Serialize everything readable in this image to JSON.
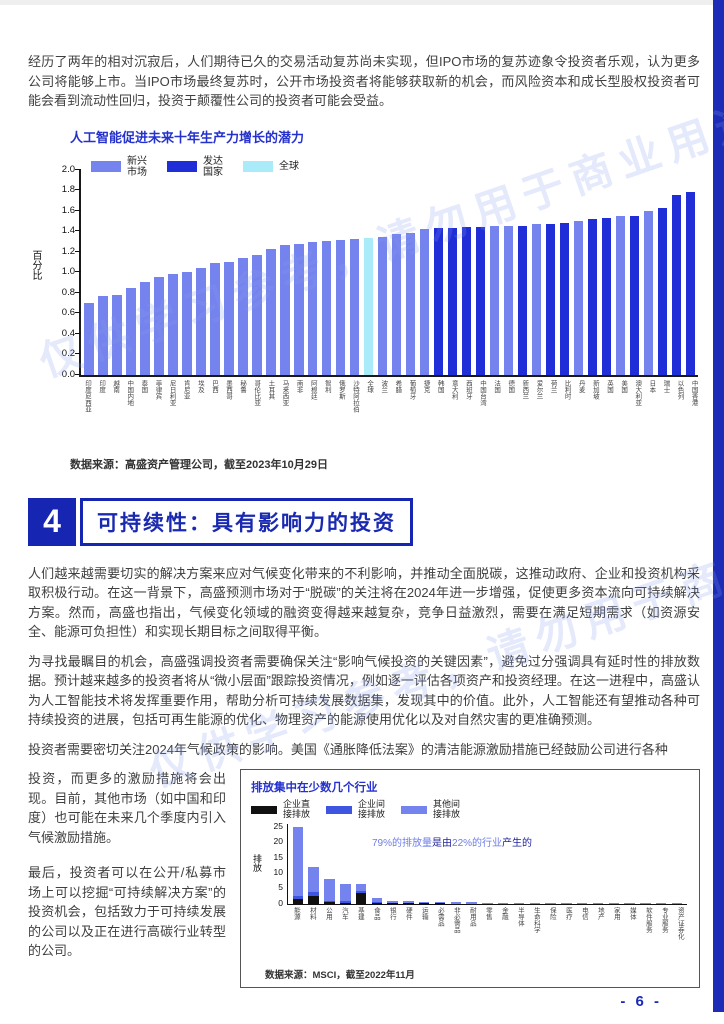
{
  "page": {
    "number": "- 6 -",
    "watermark": "仅供学习参考，请勿用于商业用途"
  },
  "paragraphs": {
    "intro": "经历了两年的相对沉寂后，人们期待已久的交易活动复苏尚未实现，但IPO市场的复苏迹象令投资者乐观，认为更多公司将能够上市。当IPO市场最终复苏时，公开市场投资者将能够获取新的机会，而风险资本和成长型股权投资者可能会看到流动性回归，投资于颠覆性公司的投资者可能会受益。",
    "sustain1": "人们越来越需要切实的解决方案来应对气候变化带来的不利影响，并推动全面脱碳，这推动政府、企业和投资机构采取积极行动。在这一背景下，高盛预测市场对于“脱碳”的关注将在2024年进一步增强，促使更多资本流向可持续解决方案。然而，高盛也指出，气候变化领域的融资变得越来越复杂，竞争日益激烈，需要在满足短期需求（如资源安全、能源可负担性）和实现长期目标之间取得平衡。",
    "sustain2": "为寻找最瞩目的机会，高盛强调投资者需要确保关注“影响气候投资的关键因素”，避免过分强调具有延时性的排放数据。预计越来越多的投资者将从“微小层面”跟踪投资情况，例如逐一评估各项资产和投资经理。在这一进程中，高盛认为人工智能技术将发挥重要作用，帮助分析可持续发展数据集，发现其中的价值。此外，人工智能还有望推动各种可持续投资的进展，包括可再生能源的优化、物理资产的能源使用优化以及对自然灾害的更准确预测。",
    "sustain3": "投资者需要密切关注2024年气候政策的影响。美国《通胀降低法案》的清洁能源激励措施已经鼓励公司进行各种",
    "col1": "投资，而更多的激励措施将会出现。目前，其他市场（如中国和印度）也可能在未来几个季度内引入气候激励措施。",
    "col2": "最后，投资者可以在公开/私募市场上可以挖掘“可持续解决方案”的投资机会，包括致力于可持续发展的公司以及正在进行高碳行业转型的公司。"
  },
  "section_header": {
    "number": "4",
    "title": "可持续性：具有影响力的投资"
  },
  "chart_data": [
    {
      "type": "bar",
      "title": "人工智能促进未来十年生产力增长的潜力",
      "ylabel": "百分比",
      "ylim": [
        0,
        2.0
      ],
      "yticks": [
        0.0,
        0.2,
        0.4,
        0.6,
        0.8,
        1.0,
        1.2,
        1.4,
        1.6,
        1.8,
        2.0
      ],
      "legend": [
        {
          "label": "新兴市场",
          "type": "em",
          "color": "#7583ee"
        },
        {
          "label": "发达国家",
          "type": "dm",
          "color": "#1f2ed6"
        },
        {
          "label": "全球",
          "type": "global",
          "color": "#a9ebf8"
        }
      ],
      "grid": false,
      "legend_position": "top-left-inside",
      "source": "数据来源：高盛资产管理公司，截至2023年10月29日",
      "categories": [
        "印度尼西亚",
        "印度",
        "越南",
        "中国内地",
        "泰国",
        "菲律宾",
        "尼日利亚",
        "肯尼亚",
        "埃及",
        "巴西",
        "墨西哥",
        "秘鲁",
        "哥伦比亚",
        "土耳其",
        "马来西亚",
        "南非",
        "阿根廷",
        "智利",
        "俄罗斯",
        "沙特阿拉伯",
        "全球",
        "波兰",
        "希腊",
        "葡萄牙",
        "捷克",
        "韩国",
        "意大利",
        "西班牙",
        "中国台湾",
        "法国",
        "德国",
        "新西兰",
        "爱尔兰",
        "荷兰",
        "比利时",
        "丹麦",
        "新加坡",
        "英国",
        "美国",
        "澳大利亚",
        "日本",
        "瑞士",
        "以色列",
        "中国香港"
      ],
      "values": [
        0.7,
        0.77,
        0.78,
        0.84,
        0.9,
        0.95,
        0.98,
        1.0,
        1.04,
        1.09,
        1.1,
        1.14,
        1.17,
        1.22,
        1.26,
        1.27,
        1.29,
        1.3,
        1.31,
        1.32,
        1.33,
        1.34,
        1.37,
        1.38,
        1.42,
        1.43,
        1.43,
        1.44,
        1.44,
        1.45,
        1.45,
        1.45,
        1.47,
        1.47,
        1.48,
        1.5,
        1.52,
        1.53,
        1.55,
        1.55,
        1.6,
        1.62,
        1.75,
        1.78
      ],
      "bar_types": [
        "em",
        "em",
        "em",
        "em",
        "em",
        "em",
        "em",
        "em",
        "em",
        "em",
        "em",
        "em",
        "em",
        "em",
        "em",
        "em",
        "em",
        "em",
        "em",
        "em",
        "global",
        "em",
        "em",
        "em",
        "em",
        "dm",
        "dm",
        "dm",
        "dm",
        "em",
        "em",
        "dm",
        "em",
        "dm",
        "dm",
        "em",
        "dm",
        "dm",
        "em",
        "dm",
        "em",
        "dm",
        "dm",
        "dm"
      ],
      "colors": {
        "em": "#7583ee",
        "dm": "#1f2ed6",
        "global": "#a9ebf8"
      }
    },
    {
      "type": "stacked-bar",
      "title": "排放集中在少数几个行业",
      "ylabel": "排放",
      "ylim": [
        0,
        26
      ],
      "yticks": [
        0,
        5,
        10,
        15,
        20,
        25
      ],
      "legend": [
        {
          "label": "企业直接排放",
          "key": "scope1",
          "color": "#111111"
        },
        {
          "label": "企业间接排放",
          "key": "scope2",
          "color": "#3d55e0"
        },
        {
          "label": "其他间接排放",
          "key": "scope3",
          "color": "#7583ee"
        }
      ],
      "annotation": {
        "part1": "79%的排放量",
        "part2": "是由",
        "part3": "22%的行业",
        "part4": "产生的"
      },
      "grid": false,
      "source": "数据来源：MSCI，截至2022年11月",
      "categories": [
        "能源",
        "材料",
        "公用",
        "汽车",
        "基建",
        "食品",
        "银行",
        "硬件",
        "运输",
        "必需品",
        "非必需品",
        "耐用品",
        "零售",
        "金融",
        "半导体",
        "生命科学",
        "保险",
        "医疗",
        "电信",
        "地产",
        "家用",
        "媒体",
        "软件服务",
        "专业服务",
        "资产证券化"
      ],
      "series": [
        {
          "name": "企业直接排放",
          "key": "scope1",
          "color": "#111111",
          "values": [
            1.5,
            2.5,
            0.5,
            0.3,
            3.5,
            0.3,
            0.15,
            0.1,
            0.1,
            0.1,
            0.05,
            0.05,
            0.05,
            0.05,
            0.05,
            0.05,
            0.05,
            0.05,
            0.03,
            0.03,
            0.03,
            0.03,
            0.02,
            0.02,
            0.02
          ]
        },
        {
          "name": "企业间接排放",
          "key": "scope2",
          "color": "#3d55e0",
          "values": [
            1.0,
            1.2,
            0.4,
            0.6,
            0.5,
            0.25,
            0.15,
            0.1,
            0.1,
            0.1,
            0.05,
            0.05,
            0.05,
            0.05,
            0.05,
            0.05,
            0.03,
            0.03,
            0.03,
            0.03,
            0.02,
            0.02,
            0.02,
            0.02,
            0.01
          ]
        },
        {
          "name": "其他间接排放",
          "key": "scope3",
          "color": "#7583ee",
          "values": [
            22.5,
            8.3,
            7.1,
            5.6,
            2.5,
            1.45,
            0.7,
            0.6,
            0.35,
            0.3,
            0.4,
            0.4,
            0.3,
            0.3,
            0.25,
            0.2,
            0.22,
            0.22,
            0.19,
            0.19,
            0.18,
            0.15,
            0.11,
            0.11,
            0.1
          ]
        }
      ]
    }
  ]
}
